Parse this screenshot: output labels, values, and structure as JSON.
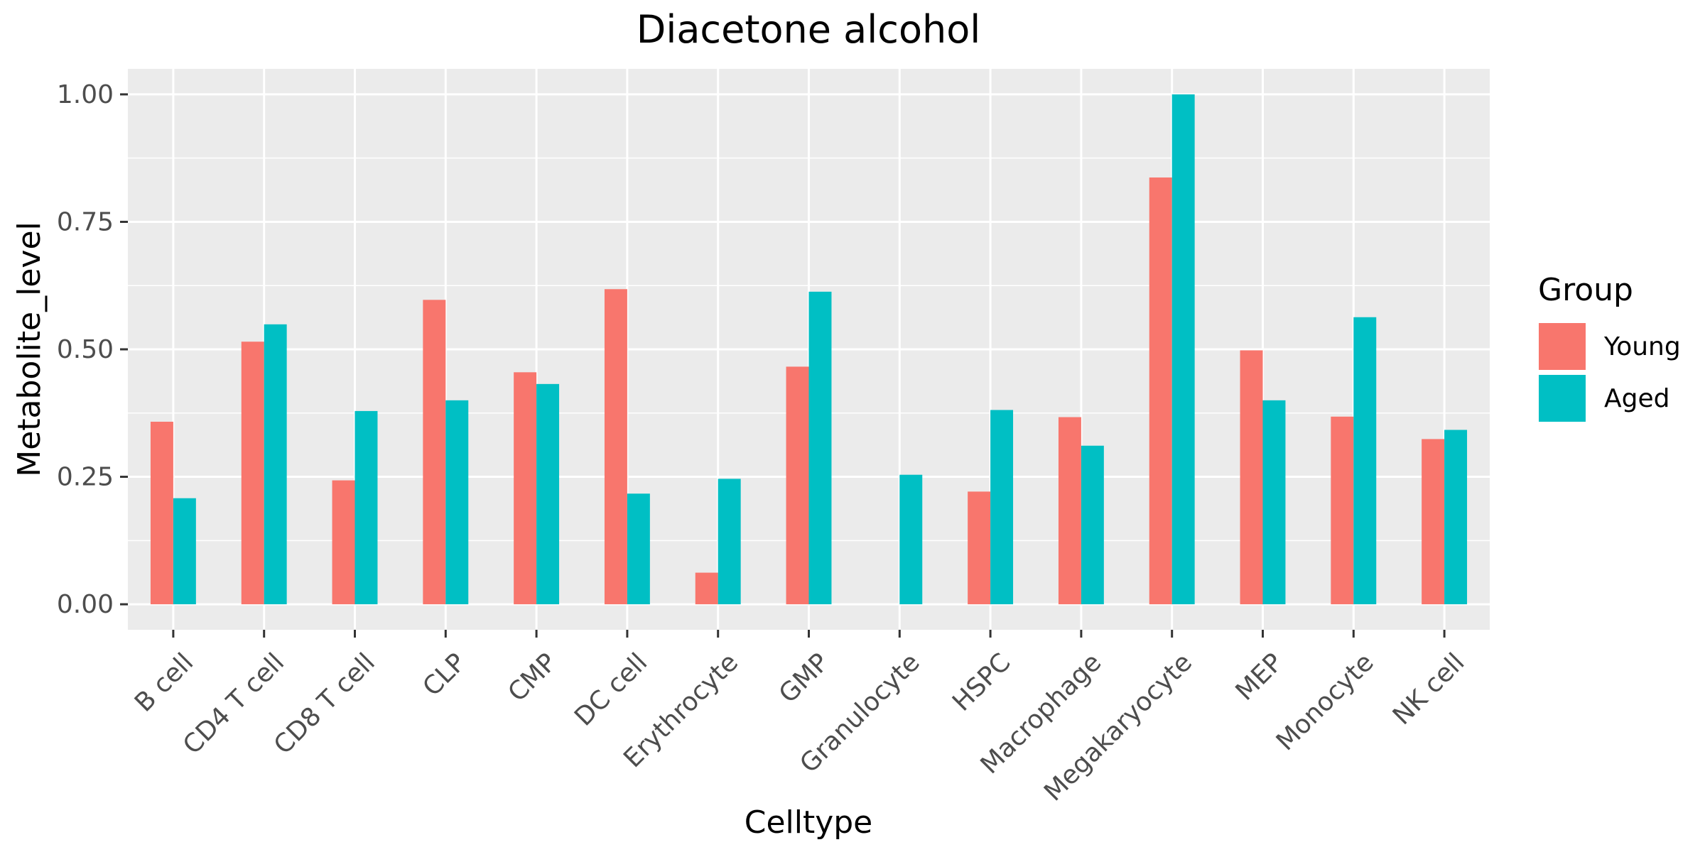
{
  "chart_data": {
    "type": "bar",
    "title": "Diacetone alcohol",
    "xlabel": "Celltype",
    "ylabel": "Metabolite_level",
    "ylim": [
      -0.05,
      1.05
    ],
    "yticks": [
      0,
      0.25,
      0.5,
      0.75,
      1
    ],
    "ytick_labels": [
      "0.00",
      "0.25",
      "0.50",
      "0.75",
      "1.00"
    ],
    "grid": true,
    "legend": {
      "title": "Group",
      "position": "right"
    },
    "categories": [
      "B cell",
      "CD4 T cell",
      "CD8 T cell",
      "CLP",
      "CMP",
      "DC cell",
      "Erythrocyte",
      "GMP",
      "Granulocyte",
      "HSPC",
      "Macrophage",
      "Megakaryocyte",
      "MEP",
      "Monocyte",
      "NK cell"
    ],
    "series": [
      {
        "name": "Young",
        "color": "#f8766d",
        "values": [
          0.358,
          0.515,
          0.243,
          0.597,
          0.455,
          0.618,
          0.062,
          0.466,
          0.0,
          0.221,
          0.367,
          0.837,
          0.498,
          0.368,
          0.324
        ]
      },
      {
        "name": "Aged",
        "color": "#00bfc4",
        "values": [
          0.208,
          0.549,
          0.379,
          0.4,
          0.432,
          0.217,
          0.246,
          0.613,
          0.254,
          0.381,
          0.311,
          1.0,
          0.4,
          0.563,
          0.342
        ]
      }
    ]
  }
}
